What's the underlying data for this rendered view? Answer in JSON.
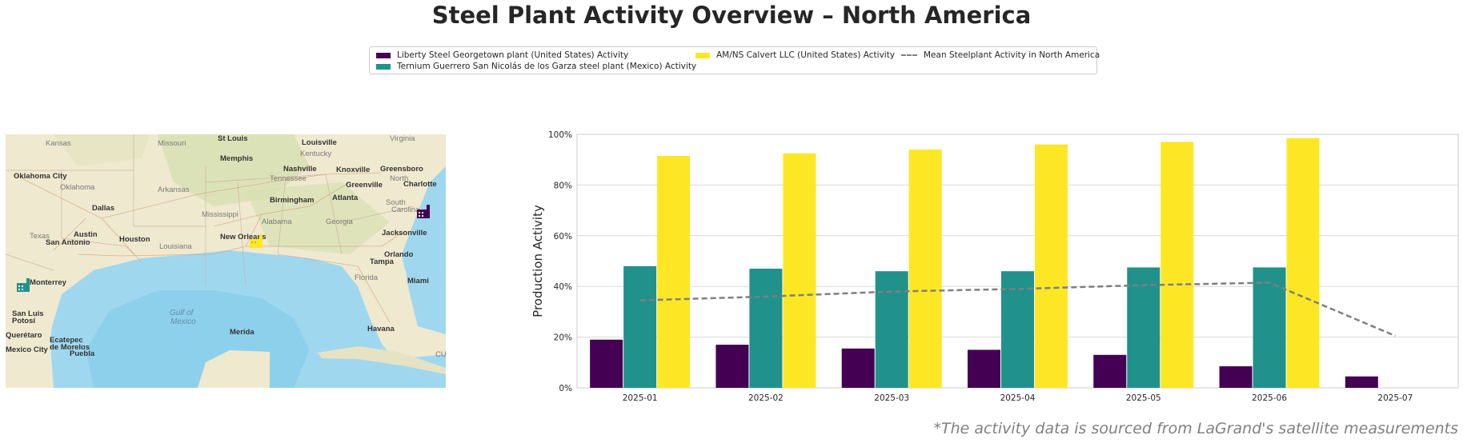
{
  "title": "Steel Plant Activity Overview – North America",
  "footnote": "*The activity data is sourced from LaGrand's satellite measurements",
  "legend": {
    "items": [
      {
        "label": "Liberty Steel Georgetown plant (United States) Activity",
        "color": "#440154",
        "kind": "bar"
      },
      {
        "label": "Ternium Guerrero San Nicolás de los Garza steel plant (Mexico) Activity",
        "color": "#21918c",
        "kind": "bar"
      },
      {
        "label": "AM/NS Calvert LLC (United States) Activity",
        "color": "#fde725",
        "kind": "bar"
      },
      {
        "label": "Mean Steelplant Activity in North America",
        "color": "#7f7f7f",
        "kind": "line"
      }
    ]
  },
  "map": {
    "labels": {
      "kansas": "Kansas",
      "missouri": "Missouri",
      "st_louis": "St Louis",
      "louisville": "Louisville",
      "kentucky": "Kentucky",
      "virginia": "Virginia",
      "oklahoma_city": "Oklahoma City",
      "oklahoma": "Oklahoma",
      "arkansas": "Arkansas",
      "memphis": "Memphis",
      "nashville": "Nashville",
      "tennessee": "Tennessee",
      "knoxville": "Knoxville",
      "greensboro": "Greensboro",
      "north": "North",
      "charlotte": "Charlotte",
      "greenville": "Greenville",
      "dallas": "Dallas",
      "mississippi": "Mississippi",
      "birmingham": "Birmingham",
      "atlanta": "Atlanta",
      "south": "South",
      "carolina": "Carolina",
      "alabama": "Alabama",
      "georgia": "Georgia",
      "texas": "Texas",
      "austin": "Austin",
      "louisiana": "Louisiana",
      "houston": "Houston",
      "new_orleans": "New Orleans",
      "jacksonville": "Jacksonville",
      "san_antonio": "San Antonio",
      "florida": "Florida",
      "orlando": "Orlando",
      "tampa": "Tampa",
      "monterrey": "Monterrey",
      "gulf_of": "Gulf of",
      "mexico": "Mexico",
      "miami": "Miami",
      "san_luis": "San Luis",
      "potosi": "Potosí",
      "havana": "Havana",
      "queretaro": "Querétaro",
      "merida": "Merida",
      "cuba": "CUBA",
      "ecatepec": "Ecatepec",
      "de_morelos": "de Morelos",
      "mexico_city": "Mexico City",
      "puebla": "Puebla"
    },
    "colors": {
      "water": "#9fd8ee",
      "deep_water": "#8dd0ec",
      "land": "#efe9cf",
      "green": "#d7e0b0"
    },
    "markers": [
      {
        "plant": "Liberty Steel Georgetown plant (United States)",
        "color": "#440154",
        "icon": "factory-icon"
      },
      {
        "plant": "Ternium Guerrero San Nicolás de los Garza steel plant (Mexico)",
        "color": "#21918c",
        "icon": "factory-icon"
      },
      {
        "plant": "AM/NS Calvert LLC (United States)",
        "color": "#fde725",
        "icon": "factory-icon"
      }
    ]
  },
  "chart_data": {
    "type": "bar",
    "categories": [
      "2025-01",
      "2025-02",
      "2025-03",
      "2025-04",
      "2025-05",
      "2025-06",
      "2025-07"
    ],
    "series": [
      {
        "name": "Liberty Steel Georgetown plant (United States) Activity",
        "color": "#440154",
        "values": [
          19,
          17,
          15.5,
          15,
          13,
          8.5,
          4.5
        ]
      },
      {
        "name": "Ternium Guerrero San Nicolás de los Garza steel plant (Mexico) Activity",
        "color": "#21918c",
        "values": [
          48,
          47,
          46,
          46,
          47.5,
          47.5,
          null
        ]
      },
      {
        "name": "AM/NS Calvert LLC (United States) Activity",
        "color": "#fde725",
        "values": [
          91.5,
          92.5,
          94,
          96,
          97,
          98.5,
          null
        ]
      }
    ],
    "line": {
      "name": "Mean Steelplant Activity in North America",
      "color": "#7f7f7f",
      "style": "dashed",
      "values": [
        34.5,
        36,
        38,
        39,
        40.5,
        41.5,
        20.5
      ]
    },
    "ylabel": "Production Activity",
    "ylim": [
      0,
      100
    ],
    "yticks": [
      0,
      20,
      40,
      60,
      80,
      100
    ],
    "ytick_labels": [
      "0%",
      "20%",
      "40%",
      "60%",
      "80%",
      "100%"
    ],
    "grid": true
  }
}
